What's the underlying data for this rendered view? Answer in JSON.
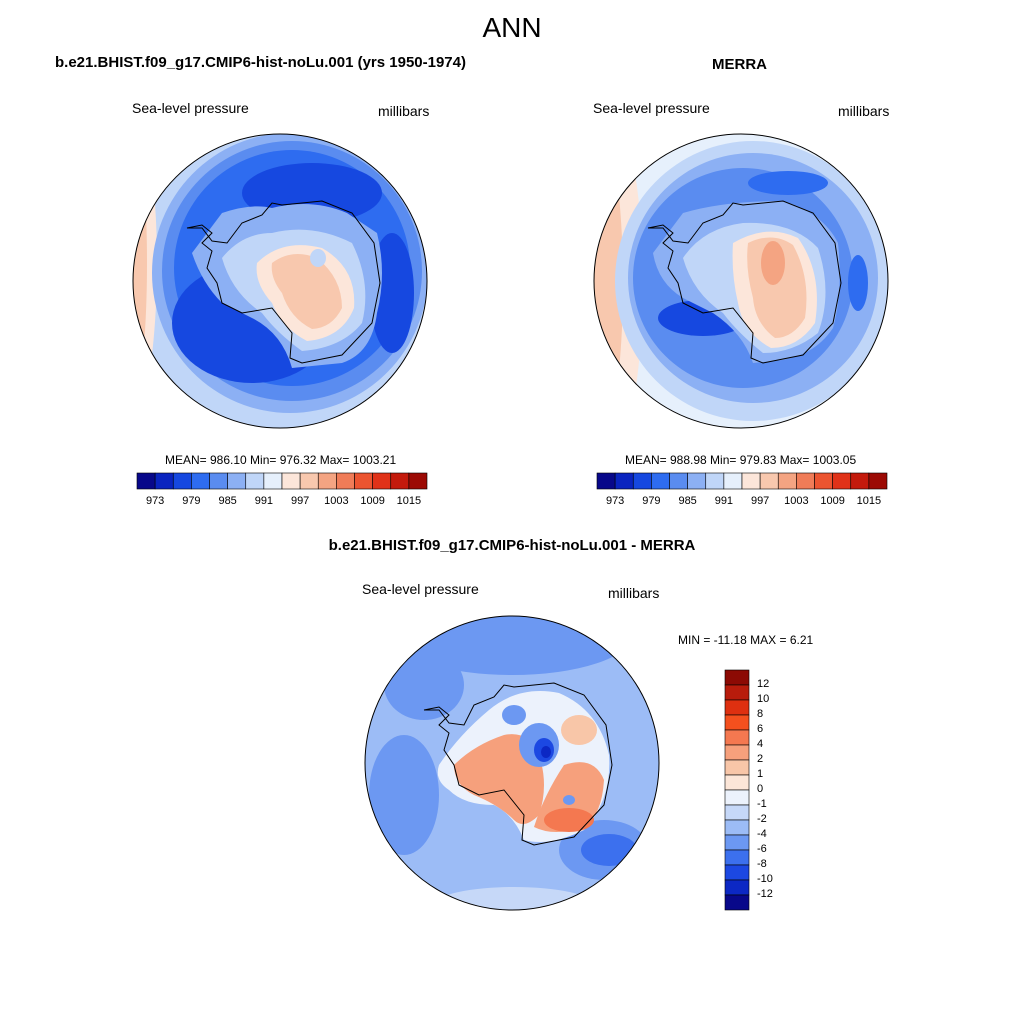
{
  "title": "ANN",
  "panels": [
    {
      "case": "b.e21.BHIST.f09_g17.CMIP6-hist-noLu.001 (yrs 1950-1974)",
      "variable": "Sea-level pressure",
      "units": "millibars",
      "stats": "MEAN= 986.10  Min= 976.32  Max= 1003.21"
    },
    {
      "case": "MERRA",
      "variable": "Sea-level pressure",
      "units": "millibars",
      "stats": "MEAN= 988.98  Min= 979.83  Max= 1003.05"
    },
    {
      "case": "b.e21.BHIST.f09_g17.CMIP6-hist-noLu.001 - MERRA",
      "variable": "Sea-level pressure",
      "units": "millibars",
      "stats": "MIN = -11.18 MAX =   6.21"
    }
  ],
  "colorbar_main": {
    "labels": [
      "973",
      "979",
      "985",
      "991",
      "997",
      "1003",
      "1009",
      "1015"
    ],
    "colors": [
      "#08088a",
      "#0a24c0",
      "#1648e0",
      "#2e6cf0",
      "#5a8cf0",
      "#8cb0f4",
      "#c0d6f8",
      "#e6f0fc",
      "#fce6da",
      "#f8c8ae",
      "#f4a482",
      "#f07c58",
      "#ec5430",
      "#e03218",
      "#c41a0c",
      "#9c0a04"
    ]
  },
  "colorbar_diff": {
    "labels": [
      "12",
      "10",
      "8",
      "6",
      "4",
      "2",
      "1",
      "0",
      "-1",
      "-2",
      "-4",
      "-6",
      "-8",
      "-10",
      "-12"
    ],
    "colors": [
      "#8c0a04",
      "#b81c0c",
      "#de3010",
      "#f4501e",
      "#f47850",
      "#f6a07c",
      "#f8c6a8",
      "#fce6d8",
      "#ecf2fc",
      "#c6d8f8",
      "#9cbcf6",
      "#6c98f2",
      "#3c70ee",
      "#1c48e2",
      "#0c28c4",
      "#08088a"
    ]
  },
  "chart_data": [
    {
      "type": "heatmap",
      "title": "b.e21.BHIST.f09_g17.CMIP6-hist-noLu.001 (yrs 1950-1974)",
      "variable": "Sea-level pressure",
      "units": "millibars",
      "mean": 986.1,
      "min": 976.32,
      "max": 1003.21,
      "levels": [
        973,
        979,
        985,
        991,
        997,
        1003,
        1009,
        1015
      ]
    },
    {
      "type": "heatmap",
      "title": "MERRA",
      "variable": "Sea-level pressure",
      "units": "millibars",
      "mean": 988.98,
      "min": 979.83,
      "max": 1003.05,
      "levels": [
        973,
        979,
        985,
        991,
        997,
        1003,
        1009,
        1015
      ]
    },
    {
      "type": "heatmap",
      "title": "b.e21.BHIST.f09_g17.CMIP6-hist-noLu.001 - MERRA",
      "variable": "Sea-level pressure",
      "units": "millibars",
      "min": -11.18,
      "max": 6.21,
      "levels": [
        12,
        10,
        8,
        6,
        4,
        2,
        1,
        0,
        -1,
        -2,
        -4,
        -6,
        -8,
        -10,
        -12
      ]
    }
  ]
}
